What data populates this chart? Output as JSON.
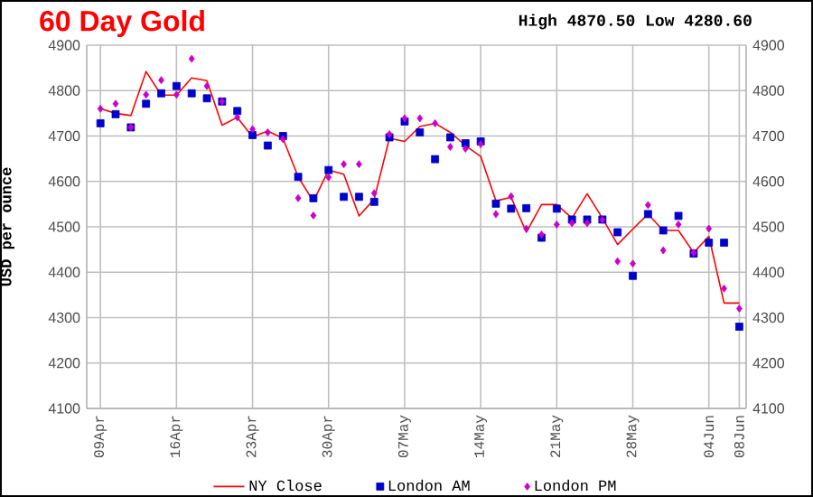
{
  "chart_data": {
    "type": "line",
    "title": "60 Day Gold",
    "subtitle": "High 4870.50 Low 4280.60",
    "ylabel": "USD per ounce",
    "categories": [
      "09Apr",
      null,
      null,
      null,
      null,
      "16Apr",
      null,
      null,
      null,
      null,
      "23Apr",
      null,
      null,
      null,
      null,
      "30Apr",
      null,
      null,
      null,
      null,
      "07May",
      null,
      null,
      null,
      null,
      "14May",
      null,
      null,
      null,
      null,
      "21May",
      null,
      null,
      null,
      null,
      "28May",
      null,
      null,
      null,
      null,
      "04Jun",
      null,
      "08Jun"
    ],
    "series": [
      {
        "name": "NY Close",
        "type": "line",
        "marker": "none",
        "color": "#ff0000",
        "values": [
          4760,
          4750,
          4745,
          4842,
          4790,
          4790,
          4828,
          4822,
          4724,
          4741,
          4698,
          4711,
          4695,
          4610,
          4556,
          4625,
          4616,
          4524,
          4561,
          4695,
          4688,
          4721,
          4728,
          4708,
          4679,
          4655,
          4557,
          4565,
          4488,
          4549,
          4549,
          4519,
          4573,
          4519,
          4461,
          4495,
          4528,
          4492,
          4492,
          4443,
          4479,
          4332,
          4332
        ]
      },
      {
        "name": "London AM",
        "type": "scatter",
        "marker": "square",
        "color": "#0000cc",
        "values": [
          4728,
          4748,
          4719,
          4771,
          4794,
          4810,
          4794,
          4783,
          4776,
          4755,
          4702,
          4679,
          4700,
          4610,
          4563,
          4625,
          4566,
          4566,
          4555,
          4697,
          4732,
          4708,
          4649,
          4697,
          4684,
          4688,
          4551,
          4540,
          4541,
          4476,
          4540,
          4516,
          4516,
          4516,
          4488,
          4392,
          4528,
          4492,
          4524,
          4441,
          4465,
          4465,
          4280
        ]
      },
      {
        "name": "London PM",
        "type": "scatter",
        "marker": "diamond",
        "color": "#cc00cc",
        "values": [
          4760,
          4771,
          4719,
          4791,
          4823,
          4791,
          4870,
          4810,
          4776,
          4741,
          4715,
          4708,
          4693,
          4563,
          4525,
          4609,
          4638,
          4638,
          4574,
          4704,
          4739,
          4739,
          4728,
          4676,
          4672,
          4682,
          4528,
          4567,
          4496,
          4483,
          4505,
          4508,
          4508,
          4515,
          4424,
          4419,
          4548,
          4448,
          4505,
          4443,
          4496,
          4364,
          4320
        ]
      }
    ],
    "ylim": [
      4100,
      4900
    ],
    "yticks": [
      4100,
      4200,
      4300,
      4400,
      4500,
      4600,
      4700,
      4800,
      4900
    ],
    "y2lim": [
      4100,
      4900
    ],
    "y2ticks": [
      4100,
      4200,
      4300,
      4400,
      4500,
      4600,
      4700,
      4800,
      4900
    ],
    "grid": true,
    "legend": "bottom"
  }
}
